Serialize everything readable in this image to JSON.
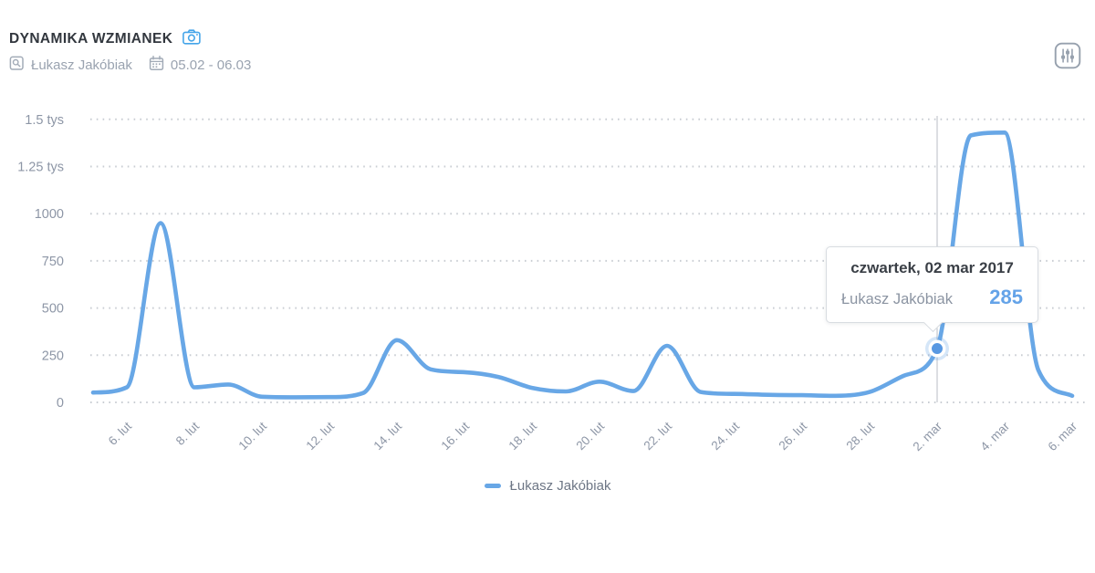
{
  "header": {
    "title": "DYNAMIKA WZMIANEK",
    "project": "Łukasz Jakóbiak",
    "date_range": "05.02 - 06.03",
    "icons": {
      "camera": "camera-icon",
      "project": "project-mentions-icon",
      "calendar": "calendar-icon",
      "settings": "chart-settings-sliders-icon"
    }
  },
  "tooltip": {
    "date": "czwartek, 02 mar 2017",
    "series": "Łukasz Jakóbiak",
    "value": "285"
  },
  "legend": {
    "label": "Łukasz Jakóbiak"
  },
  "colors": {
    "line": "#68a7e6",
    "dot": "#5898e2",
    "halo": "rgba(104,167,229,0.28)",
    "grid": "#c9cdd3",
    "axis_text": "#8d96a6",
    "crosshair": "#b8bec6",
    "accent_blue": "#45a5e9",
    "gray_icon": "#a2abb7"
  },
  "chart_data": {
    "type": "line",
    "title": "DYNAMIKA WZMIANEK",
    "xlabel": "",
    "ylabel": "",
    "ylim": [
      0,
      1500
    ],
    "grid": "dotted-horizontal",
    "legend_position": "bottom-center",
    "y_ticks": [
      {
        "label": "0",
        "value": 0
      },
      {
        "label": "250",
        "value": 250
      },
      {
        "label": "500",
        "value": 500
      },
      {
        "label": "750",
        "value": 750
      },
      {
        "label": "1000",
        "value": 1000
      },
      {
        "label": "1.25 tys",
        "value": 1250
      },
      {
        "label": "1.5 tys",
        "value": 1500
      }
    ],
    "x_ticks": [
      {
        "label": "6. lut",
        "index": 1
      },
      {
        "label": "8. lut",
        "index": 3
      },
      {
        "label": "10. lut",
        "index": 5
      },
      {
        "label": "12. lut",
        "index": 7
      },
      {
        "label": "14. lut",
        "index": 9
      },
      {
        "label": "16. lut",
        "index": 11
      },
      {
        "label": "18. lut",
        "index": 13
      },
      {
        "label": "20. lut",
        "index": 15
      },
      {
        "label": "22. lut",
        "index": 17
      },
      {
        "label": "24. lut",
        "index": 19
      },
      {
        "label": "26. lut",
        "index": 21
      },
      {
        "label": "28. lut",
        "index": 23
      },
      {
        "label": "2. mar",
        "index": 25
      },
      {
        "label": "4. mar",
        "index": 27
      },
      {
        "label": "6. mar",
        "index": 29
      }
    ],
    "series": [
      {
        "name": "Łukasz Jakóbiak",
        "color": "#68a7e6",
        "values": [
          52,
          80,
          950,
          80,
          95,
          30,
          27,
          28,
          50,
          330,
          175,
          160,
          135,
          77,
          58,
          110,
          60,
          300,
          55,
          45,
          40,
          38,
          35,
          55,
          140,
          285,
          1415,
          1430,
          170,
          35
        ]
      }
    ],
    "highlight": {
      "series": "Łukasz Jakóbiak",
      "index": 25,
      "value": 285,
      "date_label": "czwartek, 02 mar 2017"
    }
  }
}
